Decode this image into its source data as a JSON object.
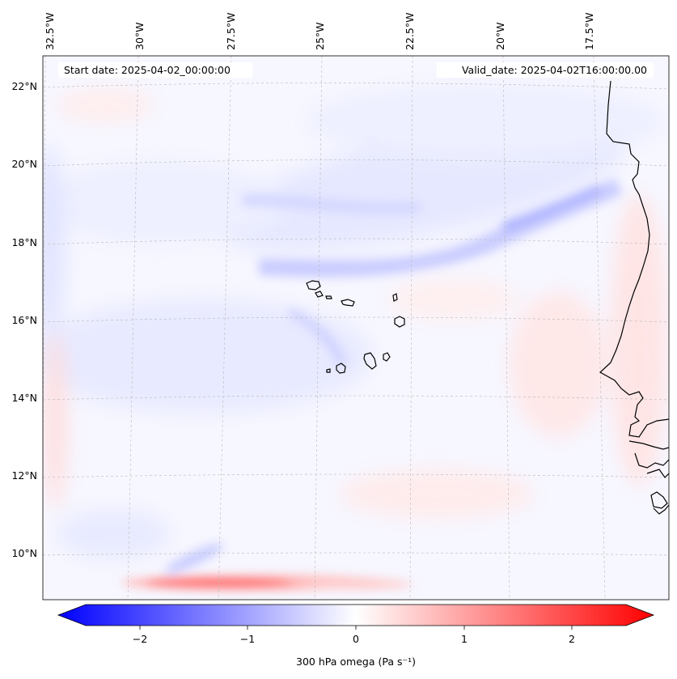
{
  "map": {
    "start_label": "Start date: 2025-04-02_00:00:00",
    "valid_label": "Valid_date: 2025-04-02T16:00:00.00",
    "lon_labels": [
      "32.5°W",
      "30°W",
      "27.5°W",
      "25°W",
      "22.5°W",
      "20°W",
      "17.5°W"
    ],
    "lat_labels": [
      "22°N",
      "20°N",
      "18°N",
      "16°N",
      "14°N",
      "12°N",
      "10°N"
    ],
    "island_group": "Cape Verde",
    "coastline": "West Africa (Senegal / Mauritania)"
  },
  "colorbar": {
    "label": "300 hPa omega (Pa s⁻¹)",
    "ticks": [
      "−2",
      "−1",
      "0",
      "1",
      "2"
    ],
    "range": [
      -2.6,
      2.6
    ],
    "cmap": "bwr",
    "colors": {
      "neg": "#0000ff",
      "zero": "#ffffff",
      "pos": "#ff0000"
    }
  }
}
